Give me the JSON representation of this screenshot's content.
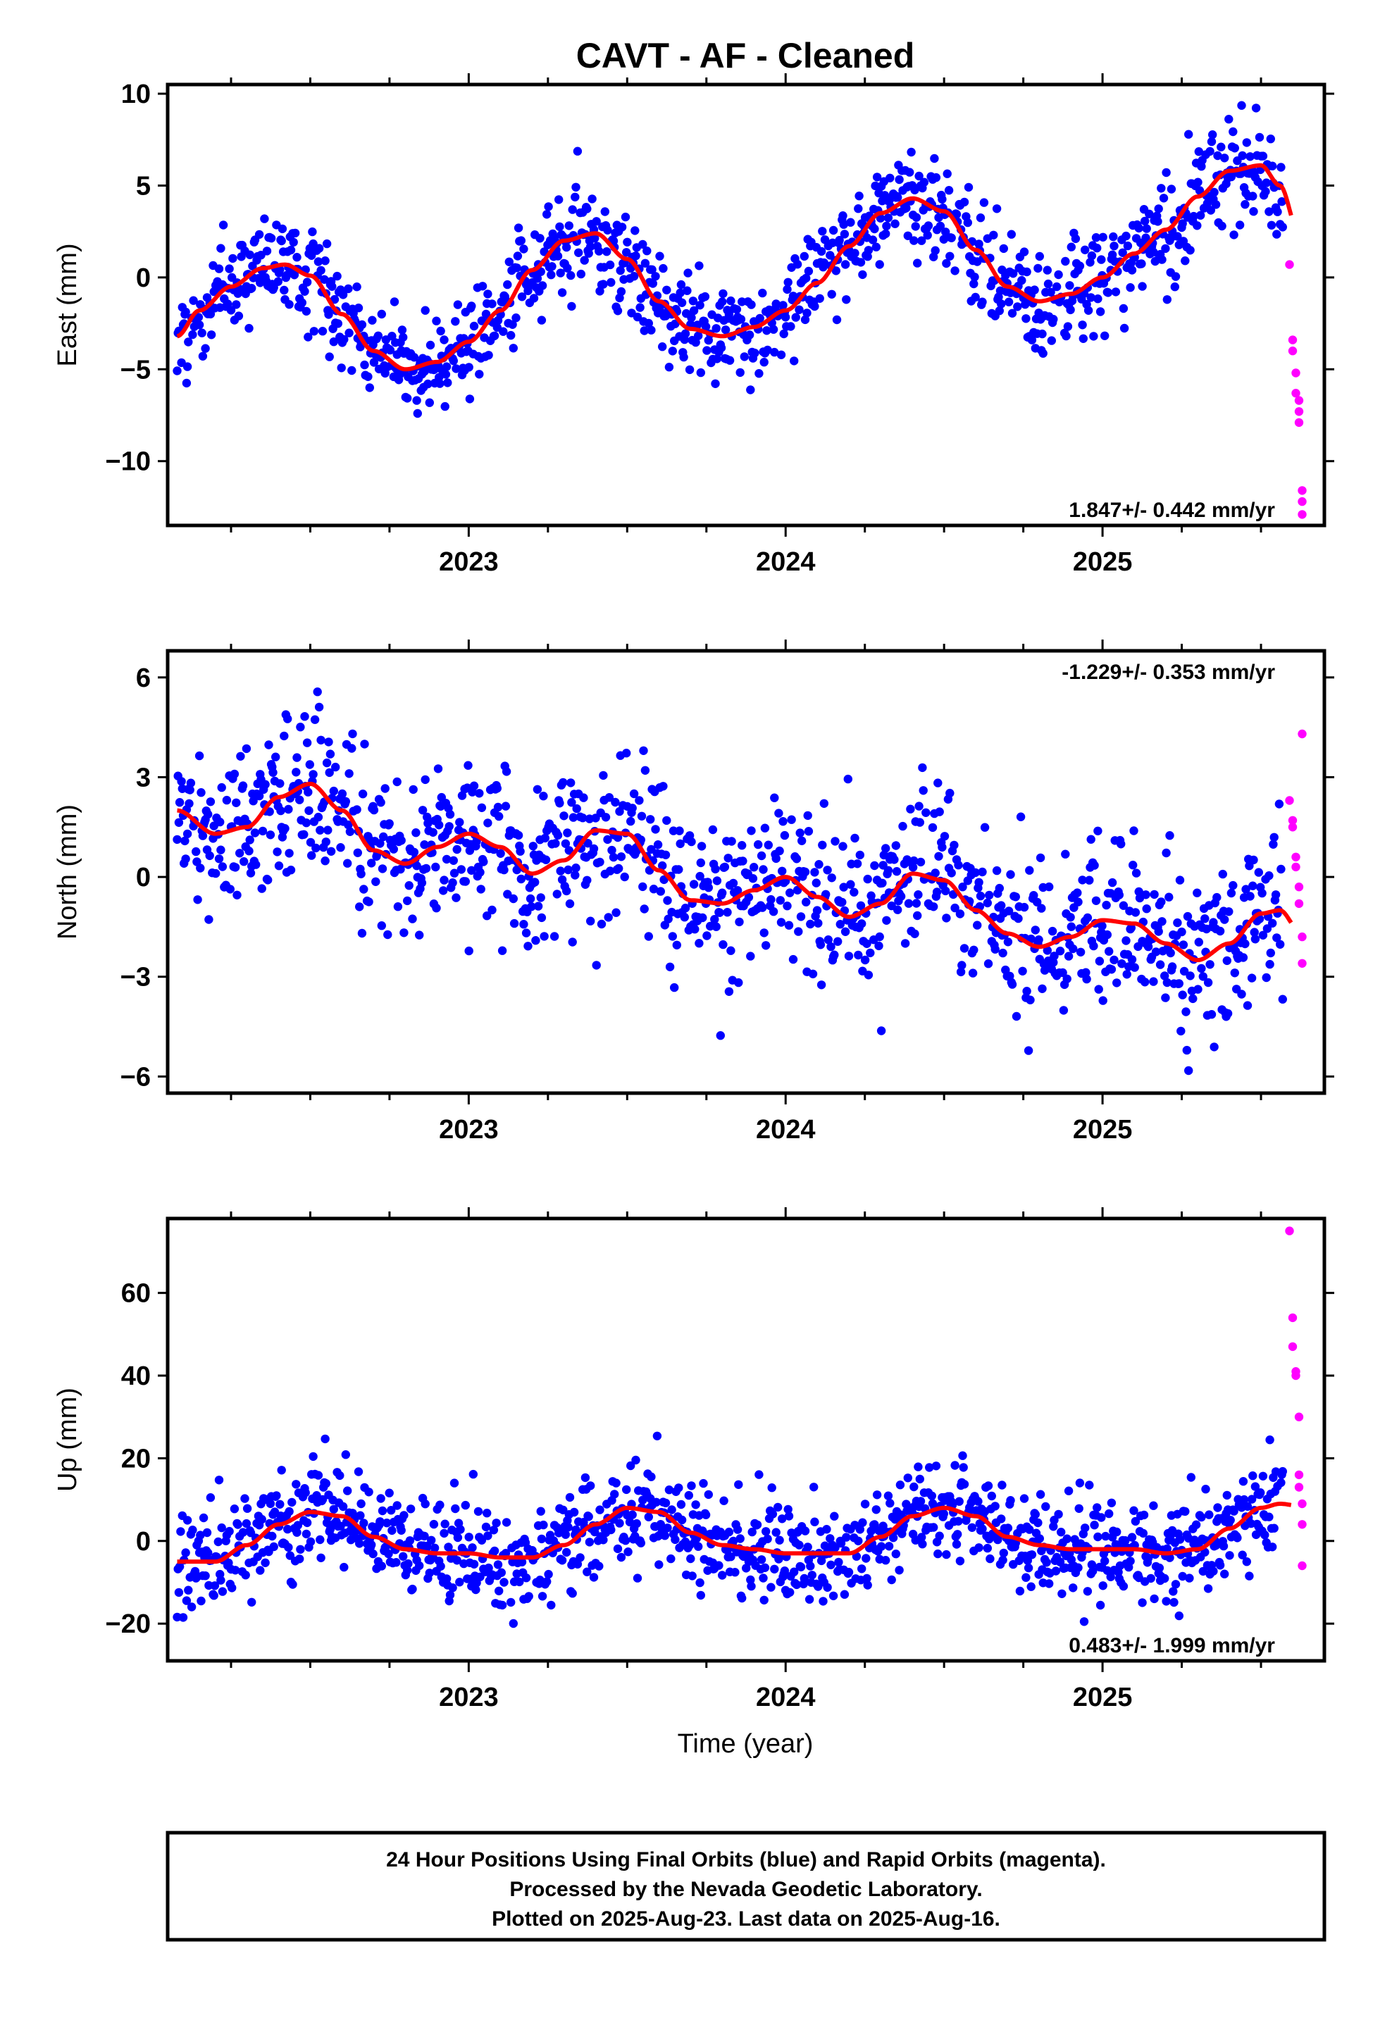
{
  "title": "CAVT  - AF - Cleaned",
  "colors": {
    "final": "#0000ff",
    "rapid": "#ff00ff",
    "model": "#ff0000",
    "frame": "#000000"
  },
  "caption": [
    "24 Hour Positions Using Final Orbits (blue) and Rapid Orbits (magenta).",
    "Processed by the Nevada Geodetic Laboratory.",
    "Plotted on 2025-Aug-23. Last data on 2025-Aug-16."
  ],
  "xlabel": "Time (year)",
  "chart_data": [
    {
      "type": "scatter",
      "panel": "east",
      "ylabel": "East (mm)",
      "rate": "1.847+/- 0.442 mm/yr",
      "xlim": [
        2022.05,
        2025.7
      ],
      "ylim": [
        -13.5,
        10.5
      ],
      "yticks": [
        10,
        5,
        0,
        -5,
        -10
      ],
      "ytick_labels": [
        "10",
        "5",
        "0",
        "−5",
        "−10"
      ],
      "xticks": [
        2023,
        2024,
        2025
      ],
      "xtick_labels": [
        "2023",
        "2024",
        "2025"
      ],
      "grid": false,
      "rate_position": "bottom-right",
      "model": {
        "trend": 1.847,
        "offset": -1.2,
        "annual_amp": 3.3,
        "annual_phase": 2022.42,
        "semi_amp": 0.4,
        "semi_phase": 2022.3
      },
      "series": [
        {
          "name": "Final Orbits",
          "color": "#0000ff",
          "x": [
            2022.08,
            2022.15,
            2022.25,
            2022.35,
            2022.42,
            2022.5,
            2022.6,
            2022.7,
            2022.8,
            2022.9,
            2023.0,
            2023.1,
            2023.2,
            2023.3,
            2023.4,
            2023.5,
            2023.6,
            2023.7,
            2023.8,
            2023.9,
            2024.0,
            2024.1,
            2024.2,
            2024.3,
            2024.4,
            2024.5,
            2024.6,
            2024.7,
            2024.8,
            2024.9,
            2025.0,
            2025.1,
            2025.2,
            2025.3,
            2025.4,
            2025.5,
            2025.56
          ],
          "y": [
            -3.2,
            -1.8,
            -0.5,
            0.5,
            0.7,
            0.1,
            -2.0,
            -4.0,
            -5.0,
            -4.6,
            -3.5,
            -1.8,
            0.4,
            2.0,
            2.4,
            1.0,
            -1.3,
            -2.8,
            -3.2,
            -2.7,
            -1.8,
            -0.3,
            1.7,
            3.5,
            4.3,
            3.6,
            1.5,
            -0.5,
            -1.3,
            -0.9,
            0.0,
            1.3,
            2.6,
            4.4,
            5.8,
            6.1,
            5.0
          ]
        }
      ],
      "rapid": {
        "name": "Rapid Orbits",
        "color": "#ff00ff",
        "x": [
          2025.59,
          2025.6,
          2025.6,
          2025.61,
          2025.61,
          2025.62,
          2025.62,
          2025.62,
          2025.63,
          2025.63,
          2025.63
        ],
        "y": [
          0.7,
          -3.4,
          -4.0,
          -5.2,
          -6.3,
          -6.7,
          -7.3,
          -7.9,
          -11.6,
          -12.2,
          -12.9
        ]
      },
      "model_curve_label": ""
    },
    {
      "type": "scatter",
      "panel": "north",
      "ylabel": "North (mm)",
      "rate": "-1.229+/- 0.353 mm/yr",
      "xlim": [
        2022.05,
        2025.7
      ],
      "ylim": [
        -6.5,
        6.8
      ],
      "yticks": [
        6,
        3,
        0,
        -3,
        -6
      ],
      "ytick_labels": [
        "6",
        "3",
        "0",
        "−3",
        "−6"
      ],
      "xticks": [
        2023,
        2024,
        2025
      ],
      "xtick_labels": [
        "2023",
        "2024",
        "2025"
      ],
      "grid": false,
      "rate_position": "top-right",
      "series": [
        {
          "name": "Final Orbits",
          "color": "#0000ff",
          "x": [
            2022.08,
            2022.2,
            2022.3,
            2022.4,
            2022.5,
            2022.6,
            2022.7,
            2022.8,
            2022.9,
            2023.0,
            2023.1,
            2023.2,
            2023.3,
            2023.4,
            2023.5,
            2023.6,
            2023.7,
            2023.8,
            2023.9,
            2024.0,
            2024.1,
            2024.2,
            2024.3,
            2024.4,
            2024.5,
            2024.6,
            2024.7,
            2024.8,
            2024.9,
            2025.0,
            2025.1,
            2025.2,
            2025.3,
            2025.4,
            2025.5,
            2025.56
          ],
          "y": [
            2.0,
            1.3,
            1.5,
            2.4,
            2.8,
            2.0,
            0.8,
            0.4,
            0.9,
            1.3,
            0.9,
            0.1,
            0.5,
            1.4,
            1.3,
            0.2,
            -0.7,
            -0.8,
            -0.4,
            0.0,
            -0.6,
            -1.2,
            -0.8,
            0.1,
            -0.1,
            -1.0,
            -1.7,
            -2.1,
            -1.8,
            -1.3,
            -1.4,
            -2.0,
            -2.5,
            -2.0,
            -1.1,
            -1.0
          ]
        }
      ],
      "rapid": {
        "name": "Rapid Orbits",
        "color": "#ff00ff",
        "x": [
          2025.59,
          2025.6,
          2025.6,
          2025.61,
          2025.61,
          2025.62,
          2025.62,
          2025.63,
          2025.63,
          2025.63
        ],
        "y": [
          2.3,
          1.7,
          1.5,
          0.6,
          0.3,
          -0.3,
          -0.8,
          -1.8,
          -2.6,
          4.3
        ]
      }
    },
    {
      "type": "scatter",
      "panel": "up",
      "ylabel": "Up (mm)",
      "rate": "0.483+/- 1.999 mm/yr",
      "xlim": [
        2022.05,
        2025.7
      ],
      "ylim": [
        -29,
        78
      ],
      "yticks": [
        60,
        40,
        20,
        0,
        -20
      ],
      "ytick_labels": [
        "60",
        "40",
        "20",
        "0",
        "−20"
      ],
      "xticks": [
        2023,
        2024,
        2025
      ],
      "xtick_labels": [
        "2023",
        "2024",
        "2025"
      ],
      "grid": false,
      "rate_position": "bottom-right",
      "series": [
        {
          "name": "Final Orbits",
          "color": "#0000ff",
          "x": [
            2022.08,
            2022.2,
            2022.3,
            2022.4,
            2022.5,
            2022.6,
            2022.7,
            2022.8,
            2022.9,
            2023.0,
            2023.1,
            2023.2,
            2023.3,
            2023.4,
            2023.5,
            2023.6,
            2023.7,
            2023.8,
            2023.9,
            2024.0,
            2024.1,
            2024.2,
            2024.3,
            2024.4,
            2024.5,
            2024.6,
            2024.7,
            2024.8,
            2024.9,
            2025.0,
            2025.1,
            2025.2,
            2025.3,
            2025.4,
            2025.5,
            2025.56
          ],
          "y": [
            -5,
            -5,
            -1,
            4,
            7,
            6,
            1,
            -2,
            -3,
            -3,
            -4,
            -4,
            -1,
            4,
            8,
            7,
            2,
            -1,
            -2,
            -3,
            -3,
            -3,
            1,
            6,
            8,
            6,
            1,
            -1,
            -2,
            -2,
            -2,
            -3,
            -2,
            3,
            8,
            9
          ]
        }
      ],
      "rapid": {
        "name": "Rapid Orbits",
        "color": "#ff00ff",
        "x": [
          2025.59,
          2025.6,
          2025.6,
          2025.61,
          2025.61,
          2025.62,
          2025.62,
          2025.62,
          2025.63,
          2025.63,
          2025.63
        ],
        "y": [
          75,
          54,
          47,
          41,
          40,
          30,
          16,
          13,
          9,
          4,
          -6
        ]
      }
    }
  ]
}
